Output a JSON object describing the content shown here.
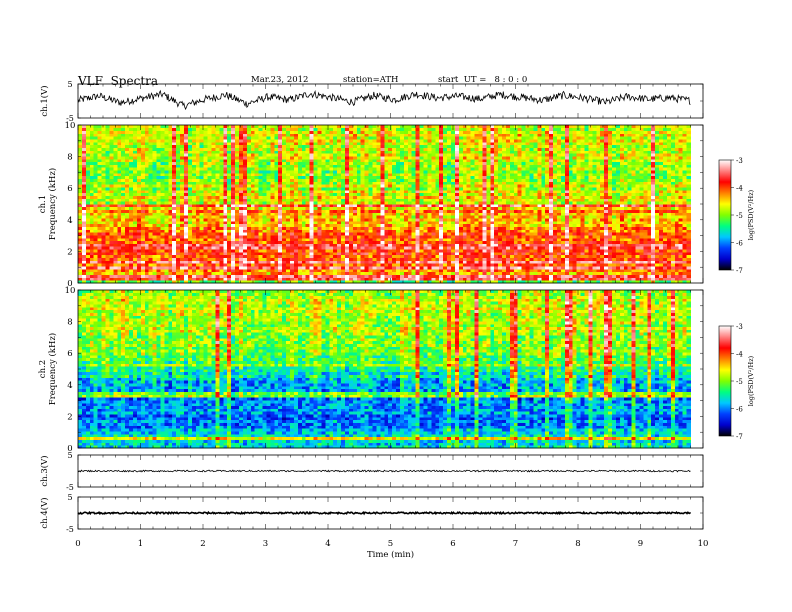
{
  "header": {
    "title": "VLF  Spectra",
    "date": "Mar.23, 2012",
    "station": "station=ATH",
    "start": "start  UT =   8 : 0 : 0"
  },
  "colors": {
    "waveform": "#000000",
    "colormap": [
      "#000000",
      "#0000cc",
      "#0040ff",
      "#00c8ff",
      "#00ff80",
      "#80ff00",
      "#ffff00",
      "#ff8000",
      "#ff0000",
      "#ff8080",
      "#ffffff"
    ]
  },
  "chart_data": [
    {
      "type": "line",
      "panel": "ch1-waveform",
      "ylabel": "ch.1(V)",
      "ylim": [
        -5,
        5
      ],
      "yticks": [
        "5",
        "-5"
      ],
      "xlim": [
        0,
        10
      ],
      "data_xmax": 9.8,
      "series": [
        {
          "values": [
            0.2,
            1.5,
            -0.5,
            0.8,
            2.0,
            -1.5,
            0.5,
            1.8,
            -0.8,
            1.2,
            0.3,
            2.2,
            1.0,
            -0.3,
            1.6,
            0.4,
            2.1,
            0.9,
            1.4,
            0.6,
            1.9,
            1.1,
            0.2,
            1.7,
            0.8,
            -0.4,
            1.3,
            0.5,
            1.0,
            0.1
          ]
        }
      ]
    },
    {
      "type": "heatmap",
      "panel": "ch1-spectrogram",
      "ylabel_top": "ch.1",
      "ylabel": "Frequency  (kHz)",
      "yticks": [
        "0",
        "2",
        "4",
        "6",
        "8",
        "10"
      ],
      "ylim": [
        0,
        10
      ],
      "xlim": [
        0,
        10
      ],
      "data_xmax": 9.8,
      "colorbar": {
        "label": "log(PSD(V²/Hz)",
        "ticks": [
          "-3",
          "-4",
          "-5",
          "-6",
          "-7"
        ],
        "range": [
          -7,
          -3
        ]
      },
      "profile_khz": [
        [
          0.0,
          -5.2
        ],
        [
          0.5,
          -4.7
        ],
        [
          1.0,
          -3.9
        ],
        [
          2.0,
          -4.0
        ],
        [
          3.0,
          -4.0
        ],
        [
          4.0,
          -4.5
        ],
        [
          4.6,
          -4.4
        ],
        [
          5.0,
          -4.6
        ],
        [
          6.0,
          -4.8
        ],
        [
          7.0,
          -4.9
        ],
        [
          8.0,
          -4.8
        ],
        [
          9.0,
          -4.7
        ],
        [
          10.0,
          -4.7
        ]
      ],
      "lines_khz": [
        [
          4.9,
          -3.5
        ],
        [
          1.0,
          -3.4
        ],
        [
          1.3,
          -3.6
        ],
        [
          2.3,
          -3.7
        ],
        [
          0.35,
          -3.5
        ],
        [
          4.55,
          -4.1
        ]
      ]
    },
    {
      "type": "heatmap",
      "panel": "ch2-spectrogram",
      "ylabel_top": "ch.2",
      "ylabel": "Frequency  (kHz)",
      "yticks": [
        "0",
        "2",
        "4",
        "6",
        "8",
        "10"
      ],
      "ylim": [
        0,
        10
      ],
      "xlim": [
        0,
        10
      ],
      "data_xmax": 9.8,
      "colorbar": {
        "label": "log(PSD(V²/Hz)",
        "ticks": [
          "-3",
          "-4",
          "-5",
          "-6",
          "-7"
        ],
        "range": [
          -7,
          -3
        ]
      },
      "profile_khz": [
        [
          0.0,
          -5.8
        ],
        [
          0.6,
          -5.6
        ],
        [
          1.5,
          -6.1
        ],
        [
          2.5,
          -6.0
        ],
        [
          3.5,
          -5.9
        ],
        [
          4.5,
          -5.6
        ],
        [
          5.5,
          -5.2
        ],
        [
          6.5,
          -5.0
        ],
        [
          7.5,
          -4.9
        ],
        [
          8.5,
          -4.8
        ],
        [
          9.5,
          -4.8
        ],
        [
          10.0,
          -4.8
        ]
      ],
      "lines_khz": [
        [
          0.6,
          -4.6
        ],
        [
          3.4,
          -5.0
        ],
        [
          5.3,
          -4.8
        ]
      ]
    },
    {
      "type": "line",
      "panel": "ch3-waveform",
      "ylabel": "ch.3(V)",
      "ylim": [
        -5,
        5
      ],
      "yticks": [
        "5",
        "-5"
      ],
      "xlim": [
        0,
        10
      ],
      "data_xmax": 9.8,
      "series": [
        {
          "values": [
            0.0,
            0.0,
            0.0,
            0.0,
            0.0,
            0.0,
            0.0,
            0.0,
            0.0,
            0.0
          ]
        }
      ]
    },
    {
      "type": "line",
      "panel": "ch4-waveform",
      "ylabel": "ch.4(V)",
      "ylim": [
        -5,
        5
      ],
      "yticks": [
        "5",
        "-5"
      ],
      "xlim": [
        0,
        10
      ],
      "data_xmax": 9.8,
      "xlabel": "Time  (min)",
      "xticks": [
        "0",
        "1",
        "2",
        "3",
        "4",
        "5",
        "6",
        "7",
        "8",
        "9",
        "10"
      ],
      "series": [
        {
          "values": [
            0.0,
            0.0,
            0.0,
            0.0,
            0.0,
            0.0,
            0.0,
            0.0,
            0.0,
            0.0
          ]
        }
      ]
    }
  ]
}
